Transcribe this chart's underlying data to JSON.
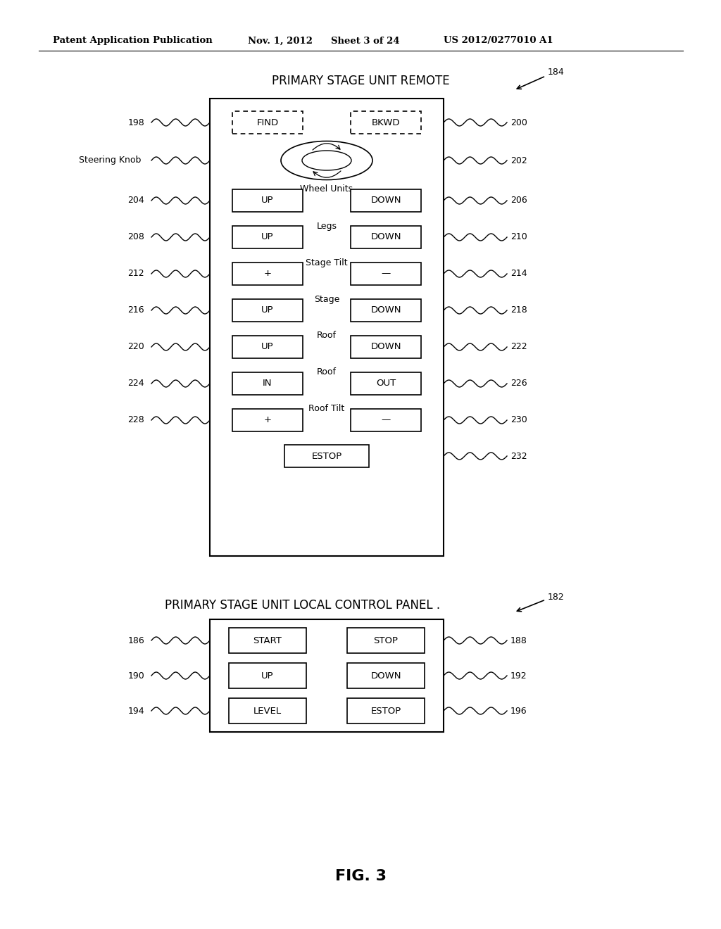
{
  "bg_color": "#ffffff",
  "header_text": "Patent Application Publication",
  "header_date": "Nov. 1, 2012",
  "header_sheet": "Sheet 3 of 24",
  "header_patent": "US 2012/0277010 A1",
  "fig_label": "FIG. 3",
  "remote_title": "PRIMARY STAGE UNIT REMOTE",
  "remote_label": "184",
  "panel_title": "PRIMARY STAGE UNIT LOCAL CONTROL PANEL .",
  "panel_label": "182",
  "remote_rows": [
    {
      "label_left": "198",
      "btn_left": "FIND",
      "btn_right": "BKWD",
      "label_right": "200",
      "sublabel": "",
      "dashed": true
    },
    {
      "label_left": "Steering Knob",
      "btn_left": "",
      "btn_right": "",
      "label_right": "202",
      "sublabel": "",
      "knob": true
    },
    {
      "label_left": "204",
      "btn_left": "UP",
      "btn_right": "DOWN",
      "label_right": "206",
      "sublabel": "Wheel Units",
      "dashed": false
    },
    {
      "label_left": "208",
      "btn_left": "UP",
      "btn_right": "DOWN",
      "label_right": "210",
      "sublabel": "Legs",
      "dashed": false
    },
    {
      "label_left": "212",
      "btn_left": "+",
      "btn_right": "—",
      "label_right": "214",
      "sublabel": "Stage Tilt",
      "dashed": false
    },
    {
      "label_left": "216",
      "btn_left": "UP",
      "btn_right": "DOWN",
      "label_right": "218",
      "sublabel": "Stage",
      "dashed": false
    },
    {
      "label_left": "220",
      "btn_left": "UP",
      "btn_right": "DOWN",
      "label_right": "222",
      "sublabel": "Roof",
      "dashed": false
    },
    {
      "label_left": "224",
      "btn_left": "IN",
      "btn_right": "OUT",
      "label_right": "226",
      "sublabel": "Roof",
      "dashed": false
    },
    {
      "label_left": "228",
      "btn_left": "+",
      "btn_right": "—",
      "label_right": "230",
      "sublabel": "Roof Tilt",
      "dashed": false
    },
    {
      "label_left": "",
      "btn_left": "",
      "btn_right": "ESTOP",
      "label_right": "232",
      "sublabel": "",
      "estop": true
    }
  ],
  "panel_rows": [
    {
      "label_left": "186",
      "btn_left": "START",
      "btn_right": "STOP",
      "label_right": "188"
    },
    {
      "label_left": "190",
      "btn_left": "UP",
      "btn_right": "DOWN",
      "label_right": "192"
    },
    {
      "label_left": "194",
      "btn_left": "LEVEL",
      "btn_right": "ESTOP",
      "label_right": "196"
    }
  ]
}
